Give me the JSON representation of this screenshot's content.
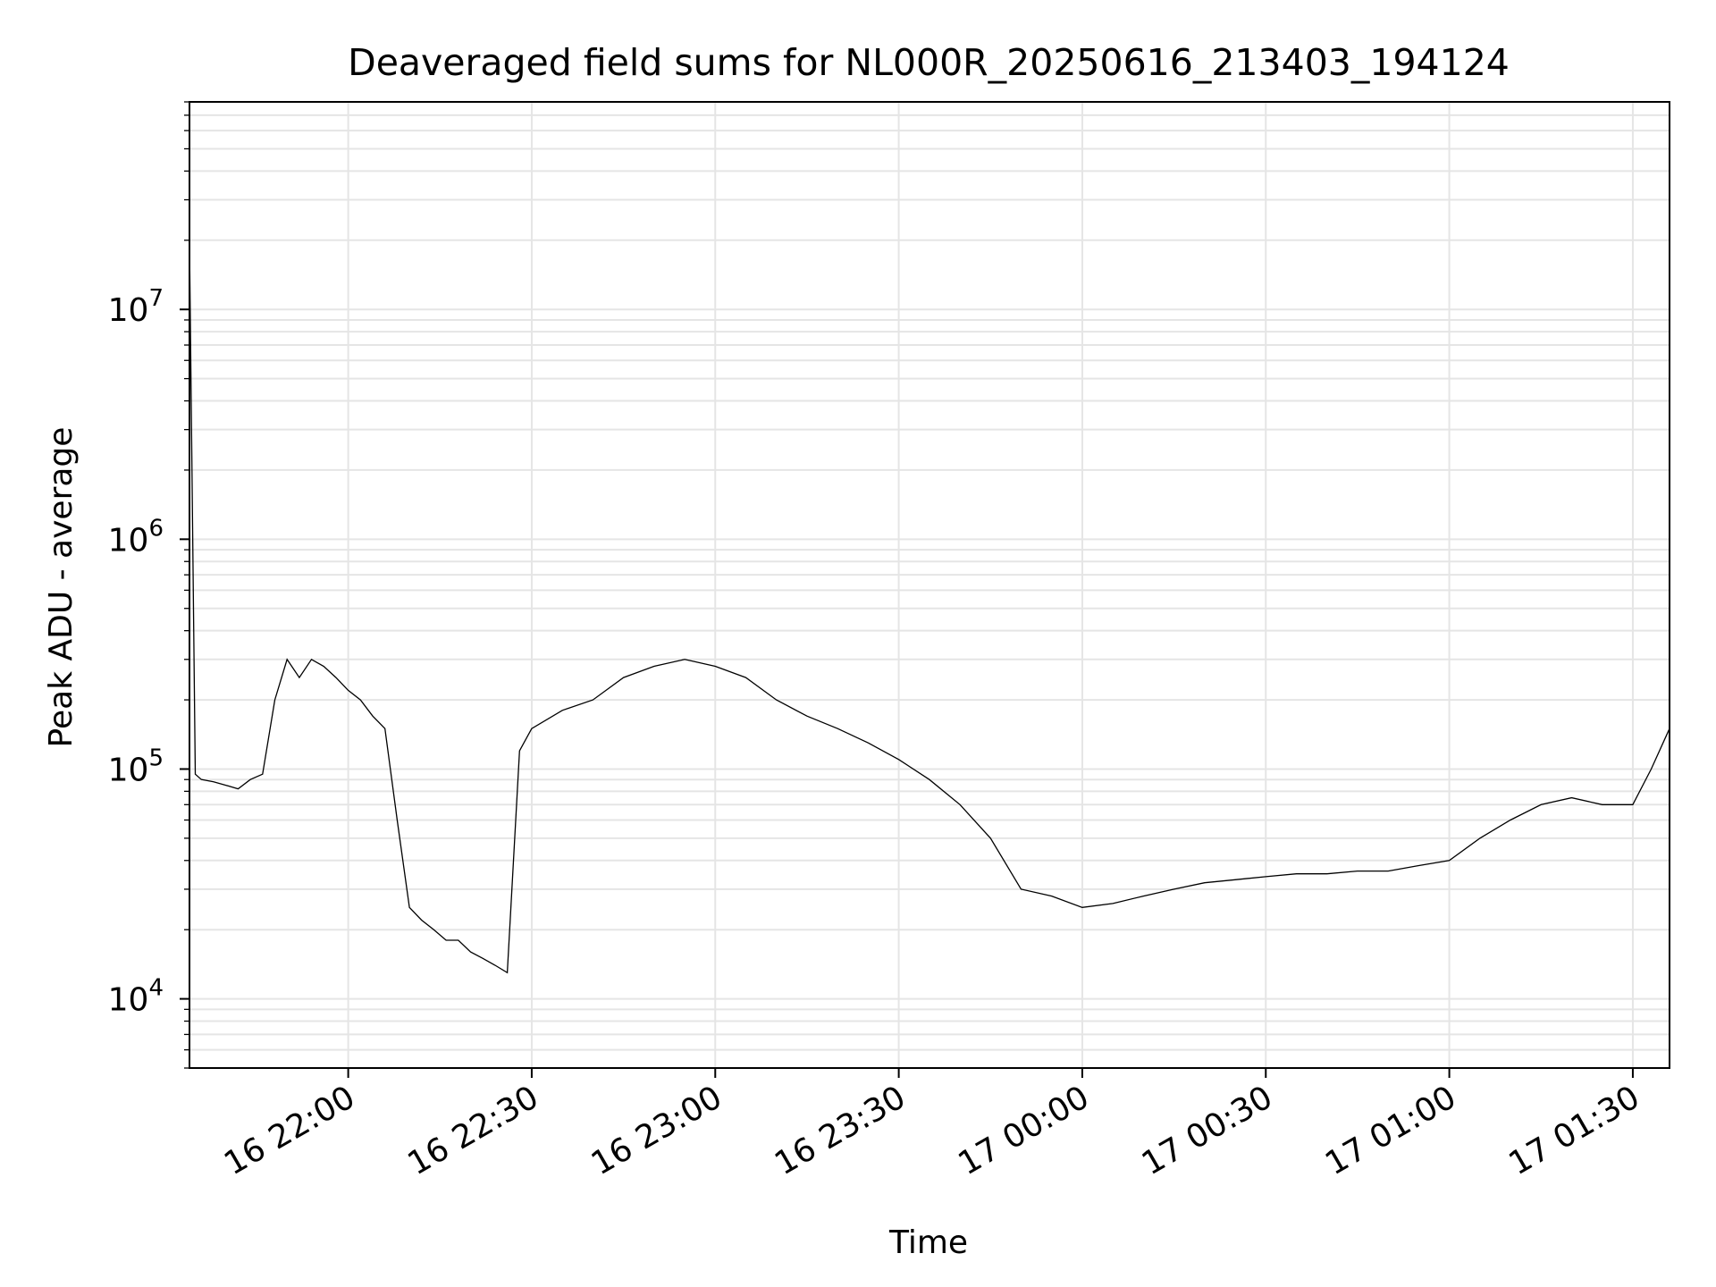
{
  "chart_data": {
    "type": "line",
    "title": "Deaveraged field sums for NL000R_20250616_213403_194124",
    "xlabel": "Time",
    "ylabel": "Peak ADU - average",
    "yscale": "log",
    "ylim": [
      5000,
      80000000
    ],
    "xlim": [
      "2025-06-16 21:34:03",
      "2025-06-17 01:36:00"
    ],
    "grid": true,
    "line_color": "#000000",
    "grid_color": "#e5e5e5",
    "x_ticks": [
      {
        "t": "2025-06-16 22:00",
        "label": "16 22:00"
      },
      {
        "t": "2025-06-16 22:30",
        "label": "16 22:30"
      },
      {
        "t": "2025-06-16 23:00",
        "label": "16 23:00"
      },
      {
        "t": "2025-06-16 23:30",
        "label": "16 23:30"
      },
      {
        "t": "2025-06-17 00:00",
        "label": "17 00:00"
      },
      {
        "t": "2025-06-17 00:30",
        "label": "17 00:30"
      },
      {
        "t": "2025-06-17 01:00",
        "label": "17 01:00"
      },
      {
        "t": "2025-06-17 01:30",
        "label": "17 01:30"
      }
    ],
    "y_ticks": [
      {
        "value": 10000,
        "base": "10",
        "exp": "4"
      },
      {
        "value": 100000,
        "base": "10",
        "exp": "5"
      },
      {
        "value": 1000000,
        "base": "10",
        "exp": "6"
      },
      {
        "value": 10000000,
        "base": "10",
        "exp": "7"
      }
    ],
    "series": [
      {
        "x": [
          "2025-06-16 21:34:03",
          "2025-06-16 21:35:00",
          "2025-06-16 21:36:00",
          "2025-06-16 21:38:00",
          "2025-06-16 21:40:00",
          "2025-06-16 21:42:00",
          "2025-06-16 21:44:00",
          "2025-06-16 21:46:00",
          "2025-06-16 21:48:00",
          "2025-06-16 21:50:00",
          "2025-06-16 21:52:00",
          "2025-06-16 21:54:00",
          "2025-06-16 21:56:00",
          "2025-06-16 21:58:00",
          "2025-06-16 22:00:00",
          "2025-06-16 22:02:00",
          "2025-06-16 22:04:00",
          "2025-06-16 22:06:00",
          "2025-06-16 22:08:00",
          "2025-06-16 22:10:00",
          "2025-06-16 22:12:00",
          "2025-06-16 22:14:00",
          "2025-06-16 22:16:00",
          "2025-06-16 22:18:00",
          "2025-06-16 22:20:00",
          "2025-06-16 22:22:00",
          "2025-06-16 22:24:00",
          "2025-06-16 22:26:00",
          "2025-06-16 22:28:00",
          "2025-06-16 22:30:00",
          "2025-06-16 22:35:00",
          "2025-06-16 22:40:00",
          "2025-06-16 22:45:00",
          "2025-06-16 22:50:00",
          "2025-06-16 22:55:00",
          "2025-06-16 23:00:00",
          "2025-06-16 23:05:00",
          "2025-06-16 23:10:00",
          "2025-06-16 23:15:00",
          "2025-06-16 23:20:00",
          "2025-06-16 23:25:00",
          "2025-06-16 23:30:00",
          "2025-06-16 23:35:00",
          "2025-06-16 23:40:00",
          "2025-06-16 23:45:00",
          "2025-06-16 23:50:00",
          "2025-06-16 23:55:00",
          "2025-06-17 00:00:00",
          "2025-06-17 00:05:00",
          "2025-06-17 00:10:00",
          "2025-06-17 00:15:00",
          "2025-06-17 00:20:00",
          "2025-06-17 00:25:00",
          "2025-06-17 00:30:00",
          "2025-06-17 00:35:00",
          "2025-06-17 00:40:00",
          "2025-06-17 00:45:00",
          "2025-06-17 00:50:00",
          "2025-06-17 00:55:00",
          "2025-06-17 01:00:00",
          "2025-06-17 01:05:00",
          "2025-06-17 01:10:00",
          "2025-06-17 01:15:00",
          "2025-06-17 01:20:00",
          "2025-06-17 01:25:00",
          "2025-06-17 01:30:00",
          "2025-06-17 01:33:00",
          "2025-06-17 01:36:00"
        ],
        "y": [
          20000000,
          95000,
          90000,
          88000,
          85000,
          82000,
          90000,
          95000,
          200000,
          300000,
          250000,
          300000,
          280000,
          250000,
          220000,
          200000,
          170000,
          150000,
          60000,
          25000,
          22000,
          20000,
          18000,
          18000,
          16000,
          15000,
          14000,
          13000,
          120000,
          150000,
          180000,
          200000,
          250000,
          280000,
          300000,
          280000,
          250000,
          200000,
          170000,
          150000,
          130000,
          110000,
          90000,
          70000,
          50000,
          30000,
          28000,
          25000,
          26000,
          28000,
          30000,
          32000,
          33000,
          34000,
          35000,
          35000,
          36000,
          36000,
          38000,
          40000,
          50000,
          60000,
          70000,
          75000,
          70000,
          70000,
          100000,
          150000
        ]
      }
    ]
  }
}
